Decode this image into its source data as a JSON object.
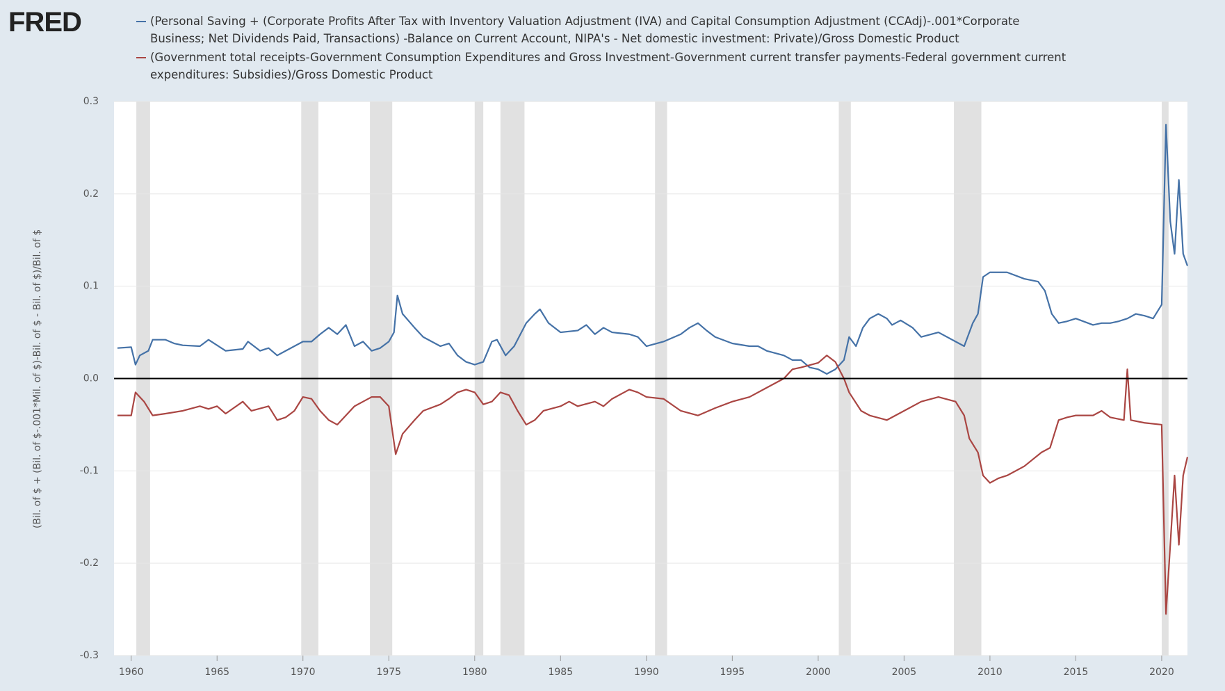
{
  "chart_data": {
    "type": "line",
    "logo": "FRED",
    "y_label": "(Bil. of $ + (Bil. of $-.001*Mil. of $)-Bil. of $ - Bil. of $)/Bil. of $",
    "series": [
      {
        "name": "(Personal Saving + (Corporate Profits After Tax with Inventory Valuation Adjustment (IVA) and Capital Consumption Adjustment (CCAdj)-.001*Corporate Business; Net Dividends Paid, Transactions) -Balance on Current Account, NIPA's - Net domestic investment: Private)/Gross Domestic Product",
        "color": "#4572a7",
        "x": [
          1959.2,
          1960,
          1960.25,
          1960.5,
          1961,
          1961.25,
          1962,
          1962.5,
          1963,
          1964,
          1964.5,
          1965,
          1965.5,
          1966.5,
          1966.8,
          1967.5,
          1968,
          1968.5,
          1969,
          1970,
          1970.5,
          1971,
          1971.5,
          1972,
          1972.5,
          1973,
          1973.5,
          1974,
          1974.5,
          1975,
          1975.3,
          1975.5,
          1975.8,
          1976.5,
          1977,
          1978,
          1978.5,
          1979,
          1979.5,
          1980,
          1980.5,
          1981,
          1981.3,
          1981.8,
          1982.3,
          1983,
          1983.5,
          1983.8,
          1984.3,
          1985,
          1986,
          1986.5,
          1987,
          1987.5,
          1988,
          1989,
          1989.5,
          1990,
          1991,
          1992,
          1992.5,
          1993,
          1993.5,
          1994,
          1995,
          1996,
          1996.5,
          1997,
          1998,
          1998.5,
          1999,
          1999.5,
          2000,
          2000.5,
          2001,
          2001.5,
          2001.8,
          2002.2,
          2002.6,
          2003,
          2003.5,
          2004,
          2004.3,
          2004.8,
          2005.5,
          2006,
          2007,
          2008,
          2008.5,
          2009,
          2009.3,
          2009.6,
          2010,
          2011,
          2012,
          2012.8,
          2013.2,
          2013.6,
          2014,
          2014.5,
          2015,
          2016,
          2016.5,
          2017,
          2017.5,
          2018,
          2018.5,
          2019,
          2019.5,
          2020,
          2020.25,
          2020.5,
          2020.75,
          2021,
          2021.25,
          2021.5
        ],
        "values": [
          0.033,
          0.034,
          0.015,
          0.025,
          0.03,
          0.042,
          0.042,
          0.038,
          0.036,
          0.035,
          0.042,
          0.036,
          0.03,
          0.032,
          0.04,
          0.03,
          0.033,
          0.025,
          0.03,
          0.04,
          0.04,
          0.048,
          0.055,
          0.048,
          0.058,
          0.035,
          0.04,
          0.03,
          0.033,
          0.04,
          0.05,
          0.09,
          0.07,
          0.055,
          0.045,
          0.035,
          0.038,
          0.025,
          0.018,
          0.015,
          0.018,
          0.04,
          0.042,
          0.025,
          0.035,
          0.06,
          0.07,
          0.075,
          0.06,
          0.05,
          0.052,
          0.058,
          0.048,
          0.055,
          0.05,
          0.048,
          0.045,
          0.035,
          0.04,
          0.048,
          0.055,
          0.06,
          0.052,
          0.045,
          0.038,
          0.035,
          0.035,
          0.03,
          0.025,
          0.02,
          0.02,
          0.012,
          0.01,
          0.005,
          0.01,
          0.02,
          0.045,
          0.035,
          0.055,
          0.065,
          0.07,
          0.065,
          0.058,
          0.063,
          0.055,
          0.045,
          0.05,
          0.04,
          0.035,
          0.06,
          0.07,
          0.11,
          0.115,
          0.115,
          0.108,
          0.105,
          0.095,
          0.07,
          0.06,
          0.062,
          0.065,
          0.058,
          0.06,
          0.06,
          0.062,
          0.065,
          0.07,
          0.068,
          0.065,
          0.08,
          0.275,
          0.17,
          0.135,
          0.215,
          0.135,
          0.122
        ]
      },
      {
        "name": "(Government total receipts-Government Consumption Expenditures and Gross Investment-Government current transfer payments-Federal government current expenditures: Subsidies)/Gross Domestic Product",
        "color": "#aa4643",
        "x": [
          1959.2,
          1960,
          1960.25,
          1960.75,
          1961.25,
          1962,
          1963,
          1964,
          1964.5,
          1965,
          1965.5,
          1966.5,
          1967,
          1968,
          1968.5,
          1969,
          1969.5,
          1970,
          1970.5,
          1971,
          1971.5,
          1972,
          1972.5,
          1973,
          1973.5,
          1974,
          1974.5,
          1975,
          1975.4,
          1975.8,
          1976.5,
          1977,
          1978,
          1978.5,
          1979,
          1979.5,
          1980,
          1980.5,
          1981,
          1981.5,
          1982,
          1982.5,
          1983,
          1983.5,
          1984,
          1985,
          1985.5,
          1986,
          1987,
          1987.5,
          1988,
          1989,
          1989.5,
          1990,
          1991,
          1992,
          1993,
          1994,
          1995,
          1996,
          1997,
          1998,
          1998.5,
          1999,
          2000,
          2000.5,
          2001,
          2001.5,
          2001.8,
          2002.5,
          2003,
          2004,
          2004.5,
          2005,
          2006,
          2007,
          2008,
          2008.5,
          2008.8,
          2009.3,
          2009.6,
          2010,
          2010.5,
          2011,
          2012,
          2013,
          2013.5,
          2014,
          2014.5,
          2015,
          2016,
          2016.5,
          2017,
          2017.8,
          2018,
          2018.2,
          2019,
          2020,
          2020.25,
          2020.5,
          2020.75,
          2021,
          2021.25,
          2021.5
        ],
        "values": [
          -0.04,
          -0.04,
          -0.015,
          -0.025,
          -0.04,
          -0.038,
          -0.035,
          -0.03,
          -0.033,
          -0.03,
          -0.038,
          -0.025,
          -0.035,
          -0.03,
          -0.045,
          -0.042,
          -0.035,
          -0.02,
          -0.022,
          -0.035,
          -0.045,
          -0.05,
          -0.04,
          -0.03,
          -0.025,
          -0.02,
          -0.02,
          -0.03,
          -0.082,
          -0.06,
          -0.045,
          -0.035,
          -0.028,
          -0.022,
          -0.015,
          -0.012,
          -0.015,
          -0.028,
          -0.025,
          -0.015,
          -0.018,
          -0.035,
          -0.05,
          -0.045,
          -0.035,
          -0.03,
          -0.025,
          -0.03,
          -0.025,
          -0.03,
          -0.022,
          -0.012,
          -0.015,
          -0.02,
          -0.022,
          -0.035,
          -0.04,
          -0.032,
          -0.025,
          -0.02,
          -0.01,
          0.0,
          0.01,
          0.012,
          0.017,
          0.025,
          0.018,
          0.0,
          -0.015,
          -0.035,
          -0.04,
          -0.045,
          -0.04,
          -0.035,
          -0.025,
          -0.02,
          -0.025,
          -0.04,
          -0.065,
          -0.08,
          -0.105,
          -0.113,
          -0.108,
          -0.105,
          -0.095,
          -0.08,
          -0.075,
          -0.045,
          -0.042,
          -0.04,
          -0.04,
          -0.035,
          -0.042,
          -0.045,
          0.01,
          -0.045,
          -0.048,
          -0.05,
          -0.255,
          -0.18,
          -0.105,
          -0.18,
          -0.105,
          -0.085
        ]
      }
    ],
    "recessions": [
      [
        1960.3,
        1961.1
      ],
      [
        1969.9,
        1970.9
      ],
      [
        1973.9,
        1975.2
      ],
      [
        1980.0,
        1980.5
      ],
      [
        1981.5,
        1982.9
      ],
      [
        1990.5,
        1991.2
      ],
      [
        2001.2,
        2001.9
      ],
      [
        2007.9,
        2009.5
      ],
      [
        2020.0,
        2020.4
      ]
    ],
    "recession_color": "#e1e1e1",
    "xlim": [
      1959,
      2021.5
    ],
    "xticks": [
      1960,
      1965,
      1970,
      1975,
      1980,
      1985,
      1990,
      1995,
      2000,
      2005,
      2010,
      2015,
      2020
    ],
    "ylim": [
      -0.3,
      0.3
    ],
    "yticks": [
      0.3,
      0.2,
      0.1,
      {
        "value": 0,
        "label": "0.0"
      },
      -0.1,
      -0.2,
      -0.3
    ],
    "grid": true,
    "zero_line": true
  }
}
